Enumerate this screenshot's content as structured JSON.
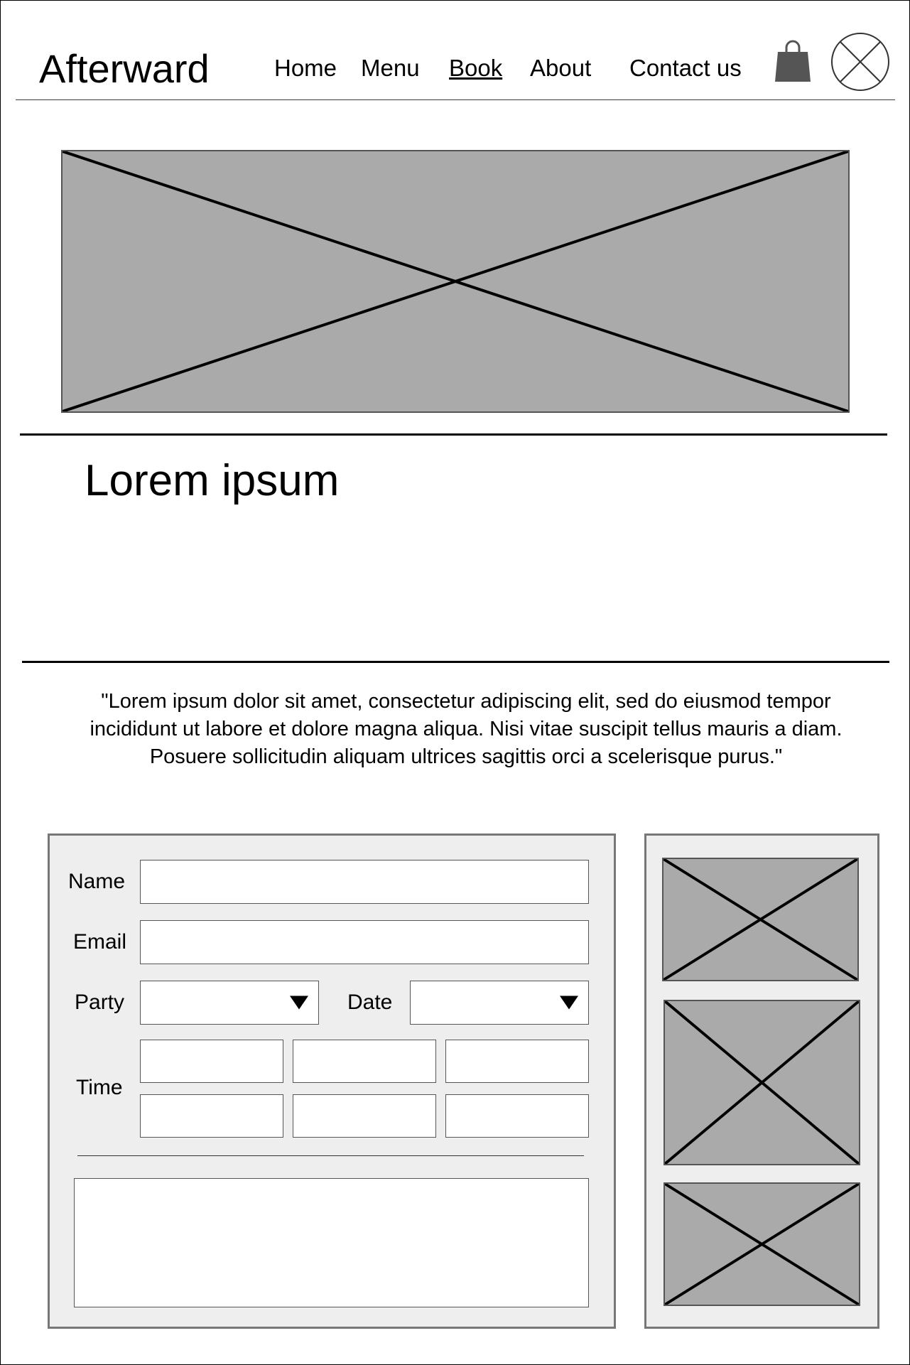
{
  "header": {
    "logo": "Afterward",
    "nav": [
      {
        "label": "Home",
        "active": false
      },
      {
        "label": "Menu",
        "active": false
      },
      {
        "label": "Book",
        "active": true
      },
      {
        "label": "About",
        "active": false
      },
      {
        "label": "Contact us",
        "active": false
      }
    ],
    "cart_icon": "shopping-bag-icon",
    "account_icon": "close-circle-icon"
  },
  "hero": {
    "image_icon": "image-placeholder-icon"
  },
  "intro": {
    "heading": "Lorem ipsum",
    "quote": "\"Lorem ipsum dolor sit amet, consectetur adipiscing elit, sed do eiusmod tempor incididunt ut labore et dolore magna aliqua. Nisi vitae suscipit tellus mauris a diam. Posuere sollicitudin aliquam ultrices sagittis orci a scelerisque purus.\""
  },
  "form": {
    "name_label": "Name",
    "name_value": "",
    "email_label": "Email",
    "email_value": "",
    "party_label": "Party",
    "party_value": "",
    "date_label": "Date",
    "date_value": "",
    "time_label": "Time",
    "time_slots": [
      "",
      "",
      "",
      "",
      "",
      ""
    ],
    "notes_value": ""
  },
  "gallery": {
    "items": [
      {
        "icon": "image-placeholder-icon"
      },
      {
        "icon": "image-placeholder-icon"
      },
      {
        "icon": "image-placeholder-icon"
      }
    ]
  },
  "colors": {
    "placeholder_fill": "#aaaaaa",
    "panel_fill": "#eeeeee",
    "panel_border": "#777777",
    "cart_icon": "#555555"
  }
}
